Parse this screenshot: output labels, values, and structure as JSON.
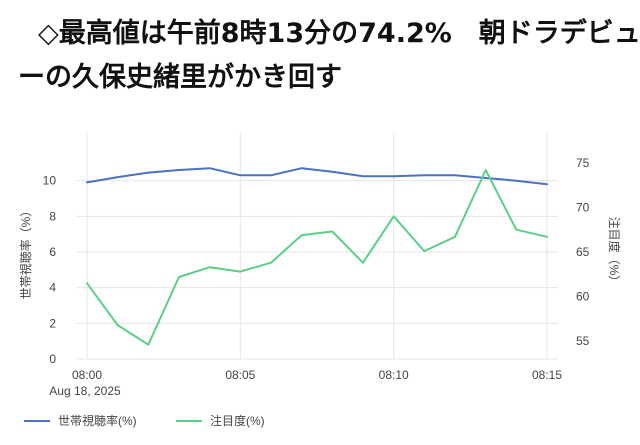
{
  "headline": {
    "line1": "◇最高値は午前8時13分の74.2%　朝ドラデビュ",
    "line2": "ーの久保史緒里がかき回す"
  },
  "colors": {
    "series1": "#4a72c4",
    "series2": "#5ccf86",
    "grid": "#e6e6e6",
    "text": "#444444",
    "background": "#ffffff"
  },
  "chart_data": {
    "type": "line",
    "title": "",
    "xlabel": "",
    "x_tick_labels": [
      "08:00",
      "08:05",
      "08:10",
      "08:15"
    ],
    "x_date_label": "Aug 18, 2025",
    "x": [
      "08:00",
      "08:01",
      "08:02",
      "08:03",
      "08:04",
      "08:05",
      "08:06",
      "08:07",
      "08:08",
      "08:09",
      "08:10",
      "08:11",
      "08:12",
      "08:13",
      "08:14",
      "08:15"
    ],
    "y_left": {
      "label": "世帯視聴率（%）",
      "ylim": [
        0,
        12
      ],
      "ticks": [
        0,
        2,
        4,
        6,
        8,
        10
      ]
    },
    "y_right": {
      "label": "注目度（%）",
      "ylim": [
        53,
        77
      ],
      "ticks": [
        55,
        60,
        65,
        70,
        75
      ]
    },
    "grid": true,
    "legend_position": "bottom-left",
    "series": [
      {
        "name": "世帯視聴率(%)",
        "axis": "left",
        "values": [
          9.9,
          10.2,
          10.45,
          10.6,
          10.7,
          10.3,
          10.3,
          10.7,
          10.5,
          10.25,
          10.25,
          10.3,
          10.3,
          10.15,
          10.0,
          9.8
        ]
      },
      {
        "name": "注目度(%)",
        "axis": "right",
        "values": [
          61.5,
          56.8,
          54.6,
          62.2,
          63.3,
          62.8,
          63.8,
          66.9,
          67.3,
          63.8,
          69.0,
          65.1,
          66.7,
          74.2,
          67.5,
          66.7
        ]
      }
    ]
  }
}
